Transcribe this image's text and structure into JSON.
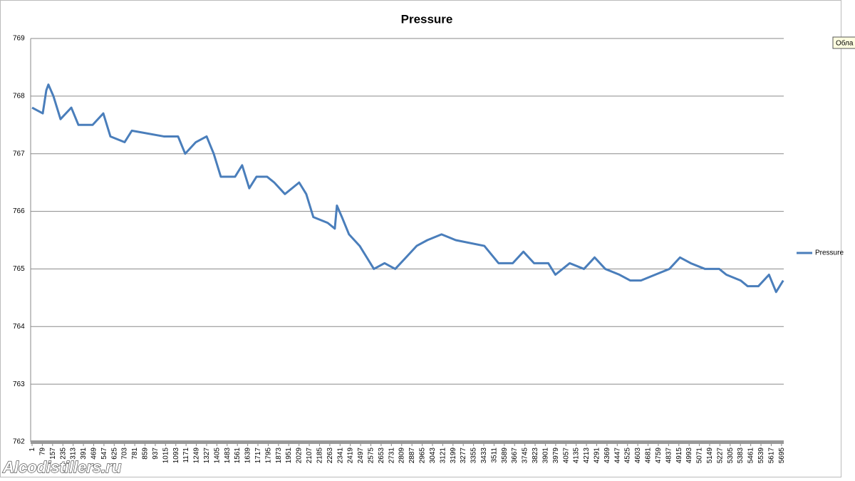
{
  "chart_data": {
    "type": "line",
    "title": "Pressure",
    "x": [
      1,
      82,
      109,
      125,
      163,
      217,
      299,
      353,
      461,
      542,
      596,
      704,
      759,
      1002,
      1110,
      1164,
      1245,
      1327,
      1381,
      1435,
      1543,
      1597,
      1651,
      1706,
      1787,
      1841,
      1922,
      2030,
      2084,
      2138,
      2247,
      2301,
      2317,
      2355,
      2409,
      2490,
      2544,
      2598,
      2679,
      2760,
      2842,
      2923,
      3004,
      3112,
      3220,
      3437,
      3545,
      3653,
      3734,
      3815,
      3923,
      3977,
      4086,
      4194,
      4275,
      4356,
      4464,
      4545,
      4627,
      4735,
      4843,
      4924,
      5005,
      5114,
      5222,
      5276,
      5384,
      5438,
      5519,
      5600,
      5654,
      5708
    ],
    "series": [
      {
        "name": "Pressure",
        "color": "#4a7ebb",
        "values": [
          767.8,
          767.7,
          768.1,
          768.2,
          768.0,
          767.6,
          767.8,
          767.5,
          767.5,
          767.7,
          767.3,
          767.2,
          767.4,
          767.3,
          767.3,
          767.0,
          767.2,
          767.3,
          767.0,
          766.6,
          766.6,
          766.8,
          766.4,
          766.6,
          766.6,
          766.5,
          766.3,
          766.5,
          766.3,
          765.9,
          765.8,
          765.7,
          766.1,
          765.9,
          765.6,
          765.4,
          765.2,
          765.0,
          765.1,
          765.0,
          765.2,
          765.4,
          765.5,
          765.6,
          765.5,
          765.4,
          765.1,
          765.1,
          765.3,
          765.1,
          765.1,
          764.9,
          765.1,
          765.0,
          765.2,
          765.0,
          764.9,
          764.8,
          764.8,
          764.9,
          765.0,
          765.2,
          765.1,
          765.0,
          765.0,
          764.9,
          764.8,
          764.7,
          764.7,
          764.9,
          764.6,
          764.8
        ]
      }
    ],
    "xlim": [
      -10,
      5712
    ],
    "xticks": [
      1,
      79,
      157,
      235,
      313,
      391,
      469,
      547,
      625,
      703,
      781,
      859,
      937,
      1015,
      1093,
      1171,
      1249,
      1327,
      1405,
      1483,
      1561,
      1639,
      1717,
      1795,
      1873,
      1951,
      2029,
      2107,
      2185,
      2263,
      2341,
      2419,
      2497,
      2575,
      2653,
      2731,
      2809,
      2887,
      2965,
      3043,
      3121,
      3199,
      3277,
      3355,
      3433,
      3511,
      3589,
      3667,
      3745,
      3823,
      3901,
      3979,
      4057,
      4135,
      4213,
      4291,
      4369,
      4447,
      4525,
      4603,
      4681,
      4759,
      4837,
      4915,
      4993,
      5071,
      5149,
      5227,
      5305,
      5383,
      5461,
      5539,
      5617,
      5695
    ],
    "ylim": [
      762,
      769
    ],
    "yticks": [
      762,
      763,
      764,
      765,
      766,
      767,
      768,
      769
    ],
    "grid": true,
    "legend": "right"
  },
  "watermark": "Alcodistillers.ru",
  "tooltip": "Обла"
}
